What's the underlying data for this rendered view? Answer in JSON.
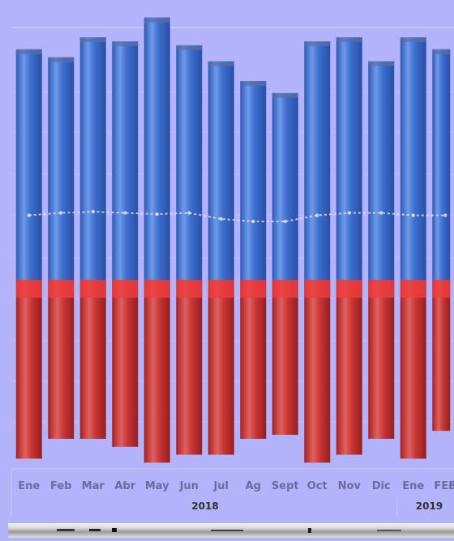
{
  "chart_data": {
    "type": "bar",
    "stacked": true,
    "categories": [
      "Ene",
      "Feb",
      "Mar",
      "Abr",
      "May",
      "Jun",
      "Jul",
      "Ag",
      "Sept",
      "Oct",
      "Nov",
      "Dic",
      "Ene",
      "FEB"
    ],
    "year_groups": [
      {
        "label": "2018",
        "count": 12
      },
      {
        "label": "2019",
        "count": 2
      }
    ],
    "series": [
      {
        "values": [
          58,
          56,
          61,
          60,
          66,
          59,
          55,
          50,
          47,
          60,
          61,
          55,
          61,
          58
        ],
        "color": "#3a66c4"
      },
      {
        "values": [
          45,
          40,
          40,
          42,
          46,
          44,
          44,
          40,
          39,
          46,
          44,
          40,
          45,
          38
        ],
        "color": "#c83434"
      }
    ],
    "line": {
      "values": [
        53,
        55,
        56,
        55,
        54,
        55,
        50,
        48,
        48,
        53,
        55,
        55,
        53,
        53
      ],
      "color": "#e6ecff"
    },
    "ylim": [
      0,
      110
    ],
    "grid": true,
    "legend": "none"
  },
  "ui": {
    "scrollbar_icon": "horizontal-scrollbar"
  }
}
